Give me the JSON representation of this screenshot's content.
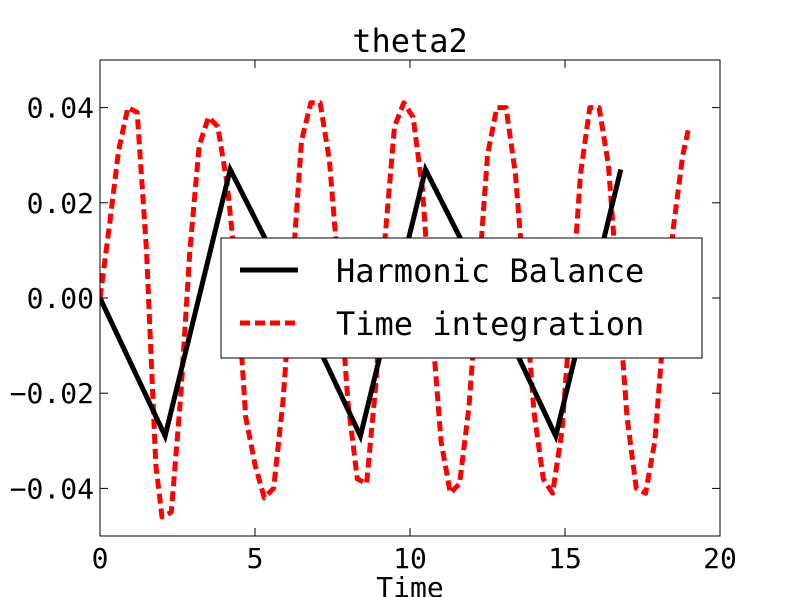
{
  "chart_data": {
    "type": "line",
    "title": "theta2",
    "xlabel": "Time",
    "ylabel": "",
    "xlim": [
      0,
      20
    ],
    "ylim": [
      -0.05,
      0.05
    ],
    "xticks": [
      0,
      5,
      10,
      15,
      20
    ],
    "xtick_labels": [
      "0",
      "5",
      "10",
      "15",
      "20"
    ],
    "yticks": [
      0.04,
      0.02,
      0.0,
      -0.02,
      -0.04
    ],
    "ytick_labels": [
      "0.04",
      "0.02",
      "0.00",
      "−0.02",
      "−0.04"
    ],
    "grid": false,
    "legend_position": "center-right",
    "series": [
      {
        "name": "Harmonic Balance",
        "color": "#000000",
        "style": "solid",
        "x": [
          0.0,
          2.1,
          4.2,
          6.3,
          8.4,
          10.5,
          12.6,
          14.7,
          16.8
        ],
        "y": [
          0.0,
          -0.029,
          0.027,
          0.0,
          -0.029,
          0.027,
          0.0,
          -0.029,
          0.027
        ]
      },
      {
        "name": "Time integration",
        "color": "#ff0000",
        "style": "dashed",
        "x": [
          0.0,
          0.3,
          0.6,
          0.9,
          1.2,
          1.5,
          1.8,
          2.0,
          2.3,
          2.6,
          2.9,
          3.2,
          3.5,
          3.8,
          4.1,
          4.4,
          4.7,
          5.0,
          5.3,
          5.6,
          5.9,
          6.2,
          6.5,
          6.8,
          7.1,
          7.4,
          7.7,
          8.0,
          8.3,
          8.6,
          8.9,
          9.2,
          9.5,
          9.8,
          10.1,
          10.4,
          10.7,
          11.0,
          11.3,
          11.6,
          11.9,
          12.2,
          12.5,
          12.8,
          13.1,
          13.4,
          13.7,
          14.0,
          14.3,
          14.6,
          14.9,
          15.2,
          15.5,
          15.8,
          16.1,
          16.4,
          16.7,
          17.0,
          17.3,
          17.6,
          17.9,
          18.2,
          18.5,
          18.8,
          19.0
        ],
        "y": [
          0.0,
          0.015,
          0.031,
          0.04,
          0.039,
          0.01,
          -0.035,
          -0.046,
          -0.045,
          -0.021,
          0.01,
          0.032,
          0.038,
          0.036,
          0.024,
          0.005,
          -0.025,
          -0.035,
          -0.042,
          -0.04,
          -0.022,
          0.005,
          0.033,
          0.041,
          0.041,
          0.029,
          0.005,
          -0.022,
          -0.038,
          -0.039,
          -0.018,
          0.013,
          0.036,
          0.041,
          0.038,
          0.023,
          -0.005,
          -0.03,
          -0.041,
          -0.039,
          -0.023,
          0.003,
          0.03,
          0.04,
          0.04,
          0.026,
          0.002,
          -0.024,
          -0.038,
          -0.041,
          -0.028,
          -0.002,
          0.026,
          0.04,
          0.04,
          0.028,
          0.002,
          -0.025,
          -0.04,
          -0.041,
          -0.03,
          -0.005,
          0.015,
          0.03,
          0.036
        ]
      }
    ]
  }
}
